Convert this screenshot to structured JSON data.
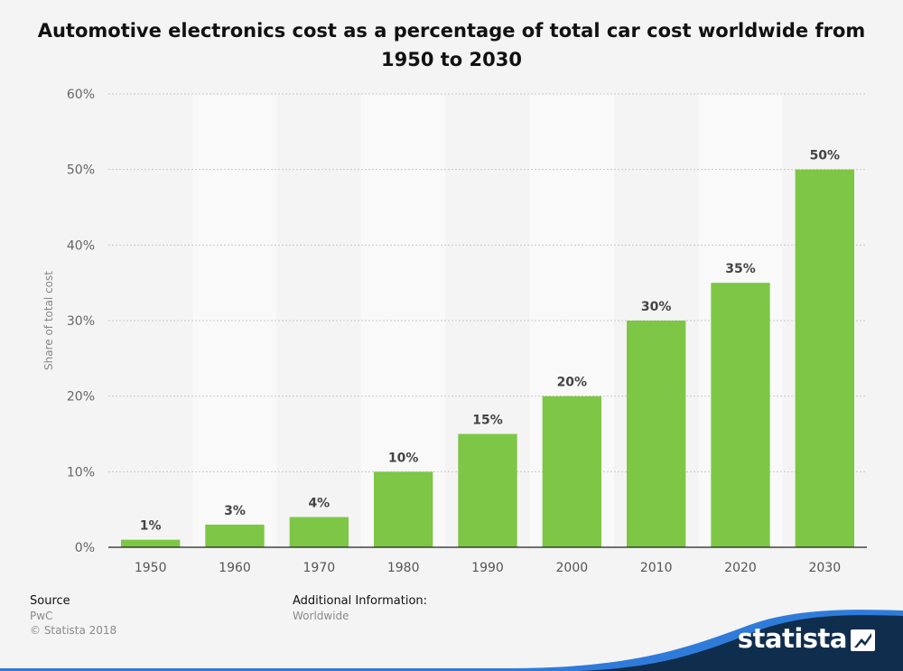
{
  "chart_data": {
    "type": "bar",
    "title": "Automotive electronics cost as a percentage of total car cost worldwide from 1950 to 2030",
    "ylabel": "Share of total cost",
    "xlabel": "",
    "categories": [
      "1950",
      "1960",
      "1970",
      "1980",
      "1990",
      "2000",
      "2010",
      "2020",
      "2030"
    ],
    "values": [
      1,
      3,
      4,
      10,
      15,
      20,
      30,
      35,
      50
    ],
    "value_labels": [
      "1%",
      "3%",
      "4%",
      "10%",
      "15%",
      "20%",
      "30%",
      "35%",
      "50%"
    ],
    "ylim": [
      0,
      60
    ],
    "yticks": [
      0,
      10,
      20,
      30,
      40,
      50,
      60
    ],
    "ytick_labels": [
      "0%",
      "10%",
      "20%",
      "30%",
      "40%",
      "50%",
      "60%"
    ],
    "grid": true,
    "bar_color": "#7ec646"
  },
  "footer": {
    "source_heading": "Source",
    "source_name": "PwC",
    "copyright": "© Statista 2018",
    "info_heading": "Additional Information:",
    "info_text": "Worldwide"
  },
  "brand": {
    "name": "statista",
    "icon": "statista-logo-icon",
    "navy": "#0f2d4d",
    "blue": "#2f7bd9"
  }
}
